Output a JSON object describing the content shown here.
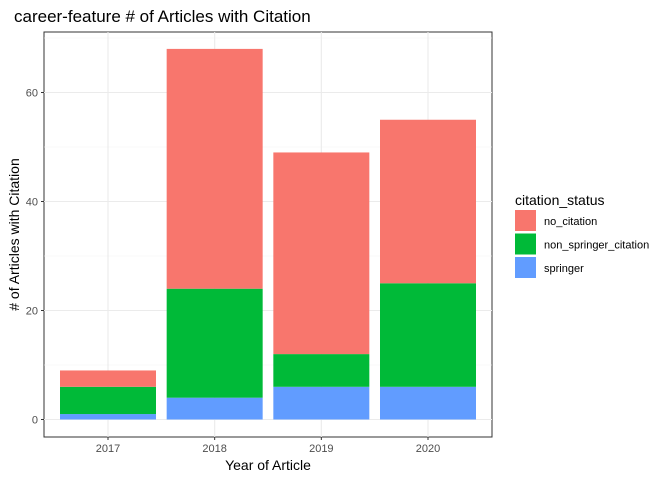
{
  "chart_data": {
    "type": "bar",
    "stacked": true,
    "title": "career-feature # of Articles with Citation",
    "xlabel": "Year of Article",
    "ylabel": "# of Articles with Citation",
    "categories": [
      "2017",
      "2018",
      "2019",
      "2020"
    ],
    "ylim": [
      0,
      70
    ],
    "yticks": [
      0,
      20,
      40,
      60
    ],
    "grid": true,
    "legend": {
      "title": "citation_status",
      "position": "right"
    },
    "series": [
      {
        "name": "springer",
        "color": "#619CFF",
        "values": [
          1,
          4,
          6,
          6
        ]
      },
      {
        "name": "non_springer_citation",
        "color": "#00BA38",
        "values": [
          5,
          20,
          6,
          19
        ]
      },
      {
        "name": "no_citation",
        "color": "#F8766D",
        "values": [
          3,
          44,
          37,
          30
        ]
      }
    ],
    "legend_order": [
      "no_citation",
      "non_springer_citation",
      "springer"
    ]
  }
}
